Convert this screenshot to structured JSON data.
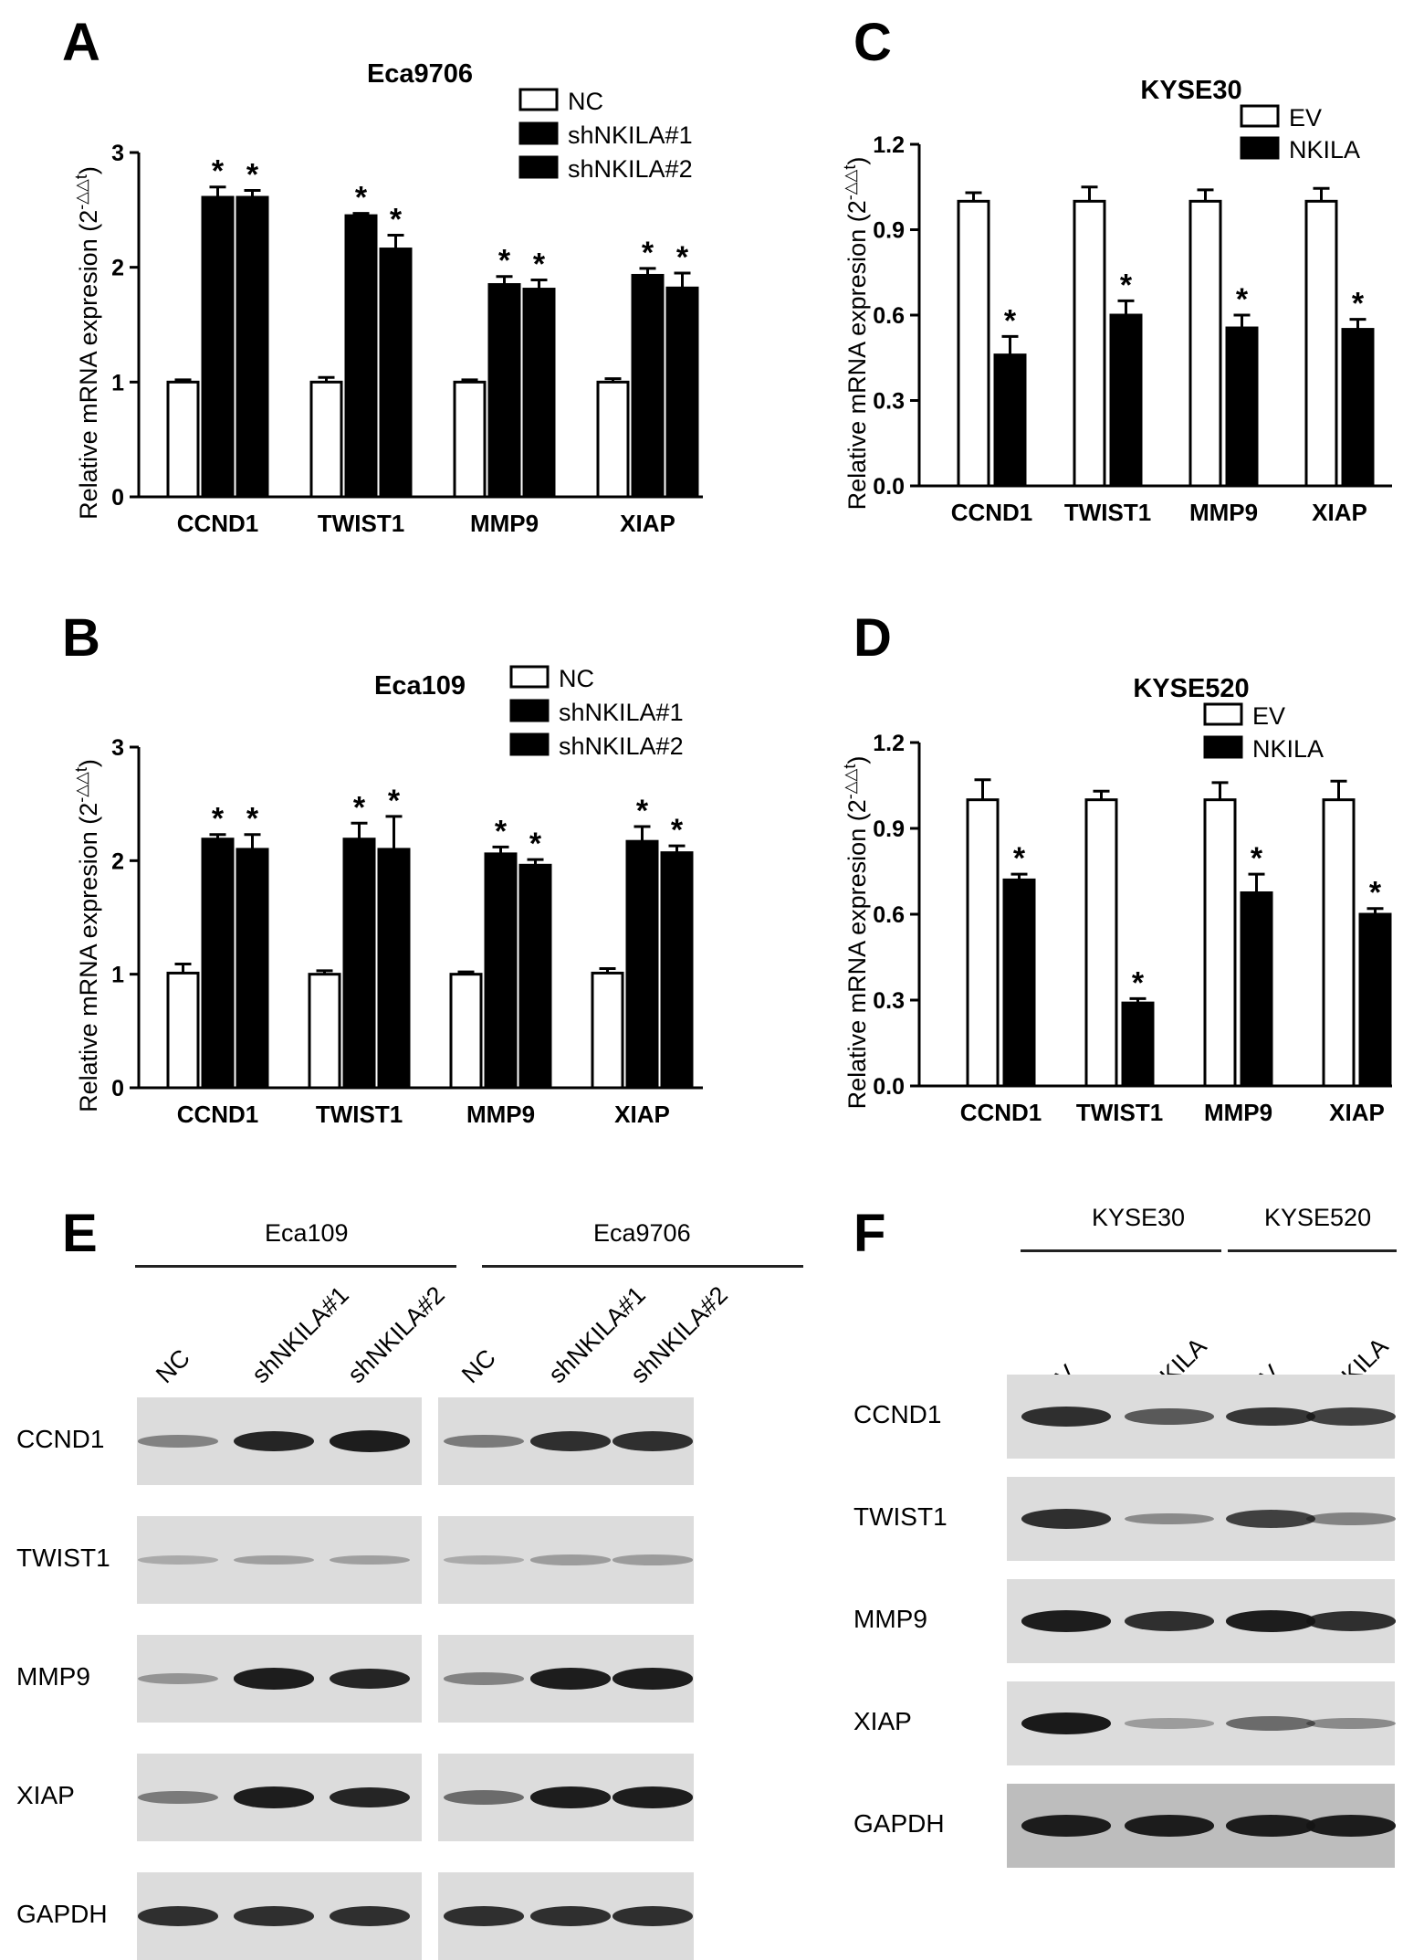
{
  "colors": {
    "black_bar": "#000000",
    "white_bar": "#ffffff",
    "axis": "#000000",
    "blot_bg": "#dcdcdc",
    "band": "#151515"
  },
  "chart_data": [
    {
      "panel": "A",
      "type": "bar",
      "title": "Eca9706",
      "ylabel": "Relative mRNA expresion (2",
      "ylabel_sup": "-△△t",
      "ylabel_close": ")",
      "xlabel": "",
      "ylim": [
        0,
        3
      ],
      "yticks": [
        "0",
        "1",
        "2",
        "3"
      ],
      "ytick_values": [
        0,
        1,
        2,
        3
      ],
      "categories": [
        "CCND1",
        "TWIST1",
        "MMP9",
        "XIAP"
      ],
      "legend_position": "top-right",
      "series": [
        {
          "name": "NC",
          "fill": "white",
          "values": [
            1.0,
            1.0,
            1.0,
            1.0
          ],
          "errors": [
            0.02,
            0.04,
            0.02,
            0.03
          ],
          "sig": [
            false,
            false,
            false,
            false
          ]
        },
        {
          "name": "shNKILA#1",
          "fill": "black",
          "values": [
            2.61,
            2.45,
            1.85,
            1.93
          ],
          "errors": [
            0.09,
            0.02,
            0.07,
            0.06
          ],
          "sig": [
            true,
            true,
            true,
            true
          ]
        },
        {
          "name": "shNKILA#2",
          "fill": "black",
          "values": [
            2.61,
            2.16,
            1.81,
            1.82
          ],
          "errors": [
            0.06,
            0.12,
            0.08,
            0.13
          ],
          "sig": [
            true,
            true,
            true,
            true
          ]
        }
      ],
      "sig_mark": "*"
    },
    {
      "panel": "B",
      "type": "bar",
      "title": "Eca109",
      "ylabel": "Relative mRNA expresion (2",
      "ylabel_sup": "-△△t",
      "ylabel_close": ")",
      "xlabel": "",
      "ylim": [
        0,
        3
      ],
      "yticks": [
        "0",
        "1",
        "2",
        "3"
      ],
      "ytick_values": [
        0,
        1,
        2,
        3
      ],
      "categories": [
        "CCND1",
        "TWIST1",
        "MMP9",
        "XIAP"
      ],
      "legend_position": "top-right",
      "series": [
        {
          "name": "NC",
          "fill": "white",
          "values": [
            1.01,
            1.0,
            1.0,
            1.01
          ],
          "errors": [
            0.08,
            0.03,
            0.02,
            0.04
          ],
          "sig": [
            false,
            false,
            false,
            false
          ]
        },
        {
          "name": "shNKILA#1",
          "fill": "black",
          "values": [
            2.19,
            2.19,
            2.06,
            2.17
          ],
          "errors": [
            0.04,
            0.14,
            0.06,
            0.13
          ],
          "sig": [
            true,
            true,
            true,
            true
          ]
        },
        {
          "name": "shNKILA#2",
          "fill": "black",
          "values": [
            2.1,
            2.1,
            1.96,
            2.07
          ],
          "errors": [
            0.13,
            0.29,
            0.05,
            0.06
          ],
          "sig": [
            true,
            true,
            true,
            true
          ]
        }
      ],
      "sig_mark": "*"
    },
    {
      "panel": "C",
      "type": "bar",
      "title": "KYSE30",
      "ylabel": "Relative mRNA expresion (2",
      "ylabel_sup": "-△△t",
      "ylabel_close": ")",
      "xlabel": "",
      "ylim": [
        0,
        1.2
      ],
      "yticks": [
        "0.0",
        "0.3",
        "0.6",
        "0.9",
        "1.2"
      ],
      "ytick_values": [
        0,
        0.3,
        0.6,
        0.9,
        1.2
      ],
      "categories": [
        "CCND1",
        "TWIST1",
        "MMP9",
        "XIAP"
      ],
      "legend_position": "top-right",
      "series": [
        {
          "name": "EV",
          "fill": "white",
          "values": [
            1.0,
            1.0,
            1.0,
            1.0
          ],
          "errors": [
            0.03,
            0.05,
            0.04,
            0.045
          ],
          "sig": [
            false,
            false,
            false,
            false
          ]
        },
        {
          "name": "NKILA",
          "fill": "black",
          "values": [
            0.46,
            0.6,
            0.555,
            0.55
          ],
          "errors": [
            0.065,
            0.05,
            0.045,
            0.035
          ],
          "sig": [
            true,
            true,
            true,
            true
          ]
        }
      ],
      "sig_mark": "*"
    },
    {
      "panel": "D",
      "type": "bar",
      "title": "KYSE520",
      "ylabel": "Relative mRNA expresion (2",
      "ylabel_sup": "-△△t",
      "ylabel_close": ")",
      "xlabel": "",
      "ylim": [
        0,
        1.2
      ],
      "yticks": [
        "0.0",
        "0.3",
        "0.6",
        "0.9",
        "1.2"
      ],
      "ytick_values": [
        0,
        0.3,
        0.6,
        0.9,
        1.2
      ],
      "categories": [
        "CCND1",
        "TWIST1",
        "MMP9",
        "XIAP"
      ],
      "legend_position": "top-right",
      "series": [
        {
          "name": "EV",
          "fill": "white",
          "values": [
            1.0,
            1.0,
            1.0,
            1.0
          ],
          "errors": [
            0.07,
            0.03,
            0.06,
            0.065
          ],
          "sig": [
            false,
            false,
            false,
            false
          ]
        },
        {
          "name": "NKILA",
          "fill": "black",
          "values": [
            0.72,
            0.29,
            0.675,
            0.6
          ],
          "errors": [
            0.02,
            0.015,
            0.065,
            0.02
          ],
          "sig": [
            true,
            true,
            true,
            true
          ]
        }
      ],
      "sig_mark": "*"
    }
  ],
  "western_blots": {
    "E": {
      "letter": "E",
      "groups": [
        "Eca109",
        "Eca9706"
      ],
      "lanes": [
        "NC",
        "shNKILA#1",
        "shNKILA#2"
      ],
      "proteins": [
        "CCND1",
        "TWIST1",
        "MMP9",
        "XIAP",
        "GAPDH"
      ],
      "band_intensity": [
        [
          [
            0.35,
            0.9,
            0.95
          ],
          [
            0.4,
            0.85,
            0.85
          ]
        ],
        [
          [
            0.12,
            0.18,
            0.18
          ],
          [
            0.12,
            0.2,
            0.2
          ]
        ],
        [
          [
            0.25,
            0.95,
            0.9
          ],
          [
            0.35,
            0.95,
            0.95
          ]
        ],
        [
          [
            0.4,
            0.95,
            0.9
          ],
          [
            0.5,
            0.95,
            0.95
          ]
        ],
        [
          [
            0.85,
            0.85,
            0.85
          ],
          [
            0.85,
            0.85,
            0.85
          ]
        ]
      ]
    },
    "F": {
      "letter": "F",
      "groups": [
        "KYSE30",
        "KYSE520"
      ],
      "lanes": [
        "EV",
        "NKILA"
      ],
      "proteins": [
        "CCND1",
        "TWIST1",
        "MMP9",
        "XIAP",
        "GAPDH"
      ],
      "band_intensity": [
        [
          [
            0.85,
            0.6
          ],
          [
            0.8,
            0.75
          ]
        ],
        [
          [
            0.85,
            0.3
          ],
          [
            0.75,
            0.35
          ]
        ],
        [
          [
            0.95,
            0.85
          ],
          [
            0.95,
            0.85
          ]
        ],
        [
          [
            0.98,
            0.2
          ],
          [
            0.5,
            0.3
          ]
        ],
        [
          [
            0.95,
            0.95
          ],
          [
            0.95,
            0.95
          ]
        ]
      ]
    }
  }
}
